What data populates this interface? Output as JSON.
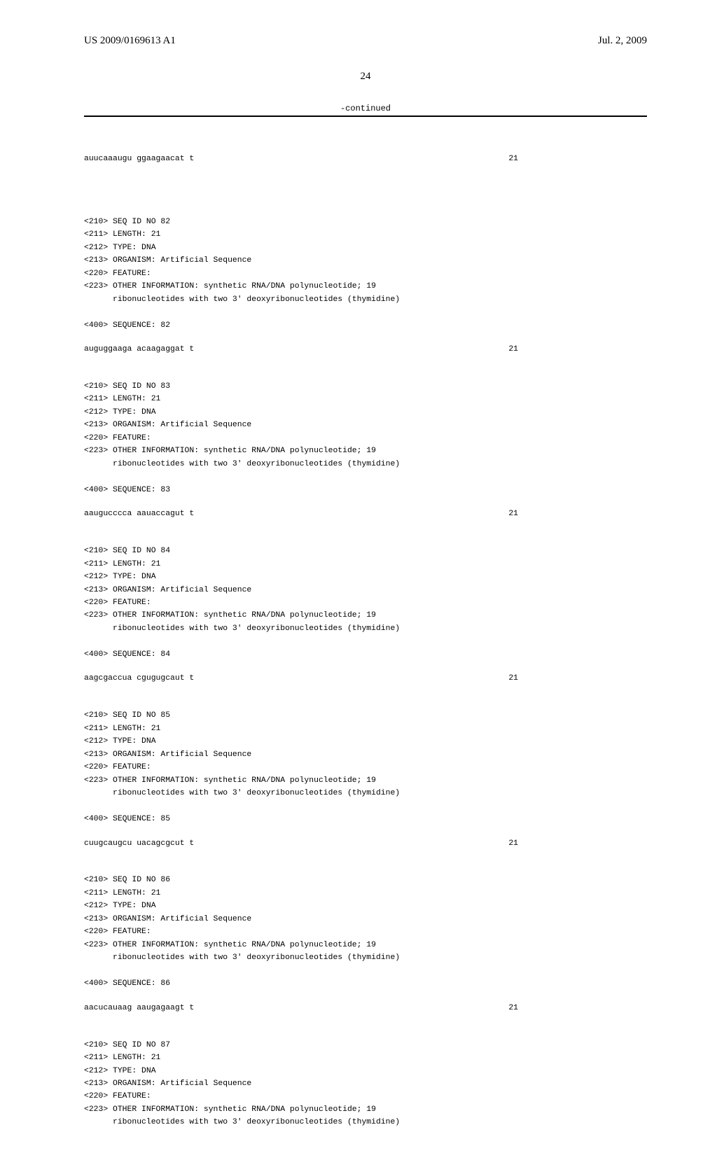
{
  "header": {
    "pub_number": "US 2009/0169613 A1",
    "pub_date": "Jul. 2, 2009"
  },
  "page_number": "24",
  "continued_label": "-continued",
  "first_seq_row": {
    "seq": "auucaaaugu ggaagaacat t",
    "len": "21"
  },
  "entries": [
    {
      "id": "82",
      "length": "21",
      "type": "DNA",
      "organism": "Artificial Sequence",
      "feature": "",
      "other_info_l1": "synthetic RNA/DNA polynucleotide; 19",
      "other_info_l2": "ribonucleotides with two 3' deoxyribonucleotides (thymidine)",
      "sequence_line": "auguggaaga acaagaggat t",
      "seq_len": "21"
    },
    {
      "id": "83",
      "length": "21",
      "type": "DNA",
      "organism": "Artificial Sequence",
      "feature": "",
      "other_info_l1": "synthetic RNA/DNA polynucleotide; 19",
      "other_info_l2": "ribonucleotides with two 3' deoxyribonucleotides (thymidine)",
      "sequence_line": "aaugucccca aauaccagut t",
      "seq_len": "21"
    },
    {
      "id": "84",
      "length": "21",
      "type": "DNA",
      "organism": "Artificial Sequence",
      "feature": "",
      "other_info_l1": "synthetic RNA/DNA polynucleotide; 19",
      "other_info_l2": "ribonucleotides with two 3' deoxyribonucleotides (thymidine)",
      "sequence_line": "aagcgaccua cgugugcaut t",
      "seq_len": "21"
    },
    {
      "id": "85",
      "length": "21",
      "type": "DNA",
      "organism": "Artificial Sequence",
      "feature": "",
      "other_info_l1": "synthetic RNA/DNA polynucleotide; 19",
      "other_info_l2": "ribonucleotides with two 3' deoxyribonucleotides (thymidine)",
      "sequence_line": "cuugcaugcu uacagcgcut t",
      "seq_len": "21"
    },
    {
      "id": "86",
      "length": "21",
      "type": "DNA",
      "organism": "Artificial Sequence",
      "feature": "",
      "other_info_l1": "synthetic RNA/DNA polynucleotide; 19",
      "other_info_l2": "ribonucleotides with two 3' deoxyribonucleotides (thymidine)",
      "sequence_line": "aacucauaag aaugagaagt t",
      "seq_len": "21"
    },
    {
      "id": "87",
      "length": "21",
      "type": "DNA",
      "organism": "Artificial Sequence",
      "feature": "",
      "other_info_l1": "synthetic RNA/DNA polynucleotide; 19",
      "other_info_l2": "ribonucleotides with two 3' deoxyribonucleotides (thymidine)",
      "sequence_line": "",
      "seq_len": ""
    }
  ],
  "labels": {
    "seq_id_prefix": "<210> SEQ ID NO ",
    "length_prefix": "<211> LENGTH: ",
    "type_prefix": "<212> TYPE: ",
    "organism_prefix": "<213> ORGANISM: ",
    "feature_prefix": "<220> FEATURE:",
    "other_info_prefix": "<223> OTHER INFORMATION: ",
    "other_info_indent": "      ",
    "sequence_prefix": "<400> SEQUENCE: "
  }
}
